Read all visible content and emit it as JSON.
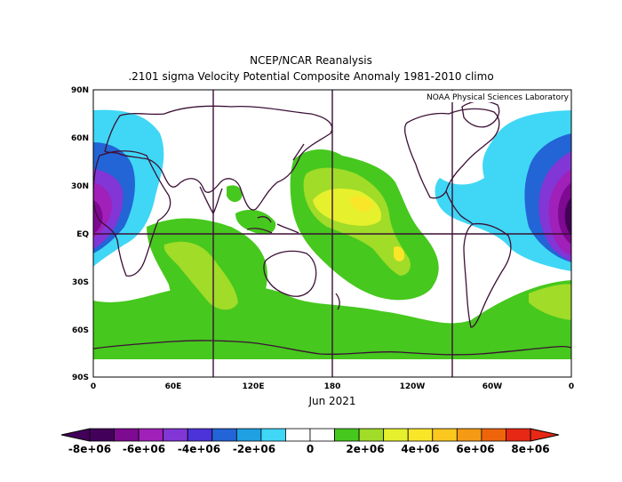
{
  "title": "NCEP/NCAR Reanalysis",
  "subtitle": ".2101 sigma Velocity Potential  Composite Anomaly 1981-2010 climo",
  "credit": "NOAA Physical Sciences Laboratory",
  "date_label": "Jun 2021",
  "lat_labels": [
    "90N",
    "60N",
    "30N",
    "EQ",
    "30S",
    "60S",
    "90S"
  ],
  "lon_labels": [
    "0",
    "60E",
    "120E",
    "180",
    "120W",
    "60W",
    "0"
  ],
  "colorbar": {
    "labels": [
      "-8e+06",
      "-6e+06",
      "-4e+06",
      "-2e+06",
      "0",
      "2e+06",
      "4e+06",
      "6e+06",
      "8e+06"
    ],
    "colors": [
      "#43005a",
      "#7d0a91",
      "#a020b9",
      "#8236d6",
      "#4b33d9",
      "#2364d6",
      "#1ea0e3",
      "#3fd7f5",
      "#ffffff",
      "#ffffff",
      "#46c81e",
      "#a0dc28",
      "#e6f02d",
      "#fae628",
      "#fac81e",
      "#f59a14",
      "#ee640a",
      "#e62814"
    ]
  },
  "map": {
    "background": "#ffffff",
    "gridline_color": "#3c1036",
    "coast_color": "#3c1036"
  }
}
